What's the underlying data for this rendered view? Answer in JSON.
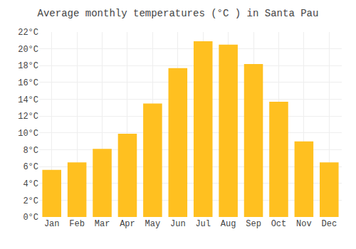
{
  "chart_data": {
    "type": "bar",
    "title": "Average monthly temperatures (°C ) in Santa Pau",
    "categories": [
      "Jan",
      "Feb",
      "Mar",
      "Apr",
      "May",
      "Jun",
      "Jul",
      "Aug",
      "Sep",
      "Oct",
      "Nov",
      "Dec"
    ],
    "values": [
      5.6,
      6.5,
      8.1,
      9.9,
      13.5,
      17.7,
      20.9,
      20.5,
      18.2,
      13.7,
      9.0,
      6.5
    ],
    "color": "#FFC020",
    "ylim": [
      0,
      22
    ],
    "yticks": [
      {
        "value": 0,
        "label": "0°C"
      },
      {
        "value": 2,
        "label": "2°C"
      },
      {
        "value": 4,
        "label": "4°C"
      },
      {
        "value": 6,
        "label": "6°C"
      },
      {
        "value": 8,
        "label": "8°C"
      },
      {
        "value": 10,
        "label": "10°C"
      },
      {
        "value": 12,
        "label": "12°C"
      },
      {
        "value": 14,
        "label": "14°C"
      },
      {
        "value": 16,
        "label": "16°C"
      },
      {
        "value": 18,
        "label": "18°C"
      },
      {
        "value": 20,
        "label": "20°C"
      },
      {
        "value": 22,
        "label": "22°C"
      }
    ],
    "grid": true
  }
}
